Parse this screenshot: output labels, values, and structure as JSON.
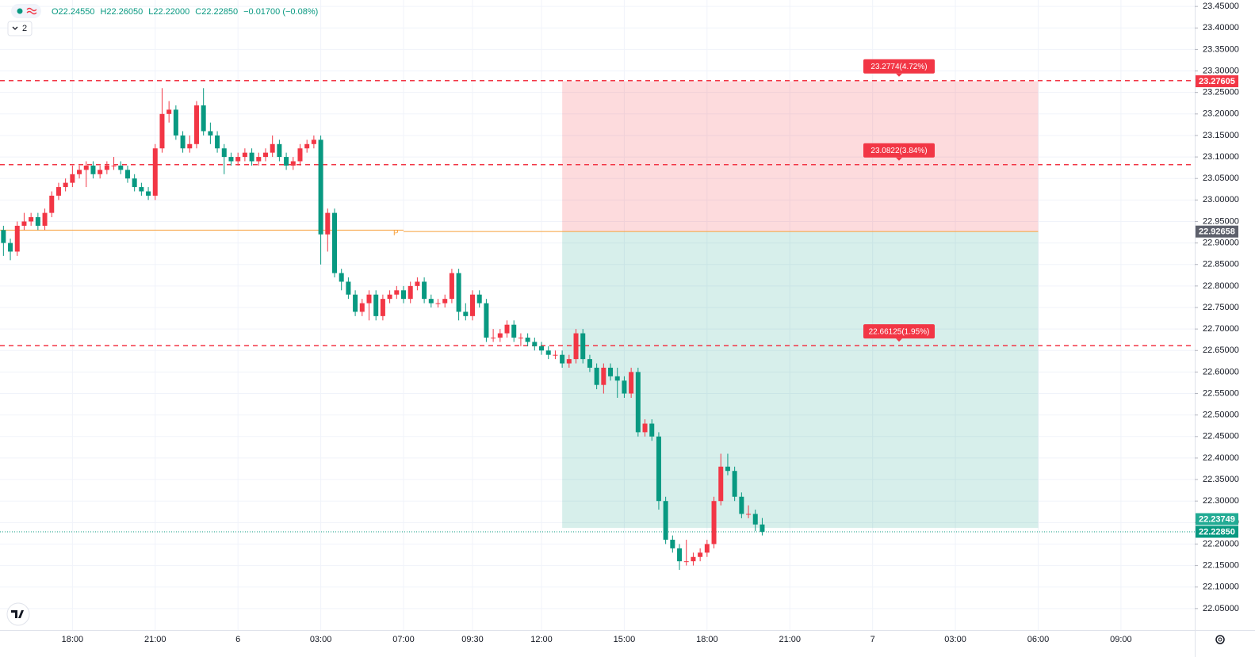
{
  "chart_data": {
    "type": "candlestick",
    "status_line": [
      "O22.24550",
      "H22.26050",
      "L22.22000",
      "C22.22850",
      "−0.01700 (−0.08%)"
    ],
    "indicator_count": "2",
    "up_color": "#f23645",
    "down_color": "#089981",
    "open": [
      22.93,
      22.9,
      22.88,
      22.94,
      22.95,
      22.96,
      22.94,
      22.97,
      23.01,
      23.03,
      23.04,
      23.06,
      23.07,
      23.08,
      23.06,
      23.07,
      23.08,
      23.08,
      23.07,
      23.05,
      23.03,
      23.02,
      23.01,
      23.12,
      23.2,
      23.21,
      23.15,
      23.12,
      23.13,
      23.22,
      23.16,
      23.15,
      23.12,
      23.1,
      23.09,
      23.1,
      23.11,
      23.09,
      23.1,
      23.11,
      23.13,
      23.1,
      23.08,
      23.09,
      23.12,
      23.13,
      23.14,
      22.92,
      22.97,
      22.83,
      22.81,
      22.78,
      22.74,
      22.76,
      22.78,
      22.73,
      22.77,
      22.78,
      22.79,
      22.77,
      22.8,
      22.81,
      22.77,
      22.76,
      22.76,
      22.77,
      22.83,
      22.74,
      22.73,
      22.78,
      22.76,
      22.68,
      22.68,
      22.69,
      22.71,
      22.68,
      22.68,
      22.67,
      22.66,
      22.65,
      22.64,
      22.64,
      22.62,
      22.63,
      22.69,
      22.63,
      22.61,
      22.57,
      22.61,
      22.59,
      22.58,
      22.55,
      22.6,
      22.46,
      22.48,
      22.45,
      22.3,
      22.21,
      22.19,
      22.16,
      22.16,
      22.17,
      22.18,
      22.2,
      22.3,
      22.38,
      22.37,
      22.31,
      22.27,
      22.27,
      22.2455
    ],
    "high": [
      22.94,
      22.91,
      22.95,
      22.97,
      22.97,
      22.97,
      22.98,
      23.02,
      23.04,
      23.05,
      23.08,
      23.08,
      23.09,
      23.09,
      23.08,
      23.09,
      23.1,
      23.09,
      23.08,
      23.06,
      23.04,
      23.03,
      23.13,
      23.26,
      23.23,
      23.22,
      23.16,
      23.15,
      23.23,
      23.26,
      23.18,
      23.16,
      23.13,
      23.11,
      23.11,
      23.12,
      23.12,
      23.11,
      23.12,
      23.15,
      23.14,
      23.11,
      23.1,
      23.13,
      23.14,
      23.15,
      23.15,
      22.98,
      22.98,
      22.84,
      22.82,
      22.79,
      22.77,
      22.79,
      22.79,
      22.78,
      22.79,
      22.8,
      22.8,
      22.81,
      22.82,
      22.82,
      22.78,
      22.77,
      22.78,
      22.84,
      22.84,
      22.76,
      22.79,
      22.79,
      22.77,
      22.7,
      22.7,
      22.72,
      22.72,
      22.69,
      22.69,
      22.68,
      22.67,
      22.66,
      22.65,
      22.65,
      22.64,
      22.7,
      22.7,
      22.64,
      22.62,
      22.62,
      22.62,
      22.61,
      22.59,
      22.61,
      22.61,
      22.49,
      22.49,
      22.46,
      22.31,
      22.22,
      22.2,
      22.21,
      22.18,
      22.19,
      22.21,
      22.31,
      22.41,
      22.41,
      22.38,
      22.32,
      22.29,
      22.28,
      22.2605
    ],
    "low": [
      22.87,
      22.86,
      22.87,
      22.93,
      22.94,
      22.93,
      22.93,
      22.96,
      23.0,
      23.02,
      23.03,
      23.05,
      23.03,
      23.05,
      23.05,
      23.06,
      23.07,
      23.06,
      23.04,
      23.02,
      23.01,
      23.0,
      23.0,
      23.11,
      23.18,
      23.14,
      23.11,
      23.11,
      23.12,
      23.15,
      23.13,
      23.11,
      23.06,
      23.08,
      23.08,
      23.09,
      23.08,
      23.08,
      23.09,
      23.1,
      23.09,
      23.07,
      23.07,
      23.08,
      23.11,
      23.12,
      22.85,
      22.88,
      22.82,
      22.79,
      22.77,
      22.73,
      22.73,
      22.72,
      22.72,
      22.72,
      22.76,
      22.77,
      22.76,
      22.76,
      22.79,
      22.76,
      22.75,
      22.75,
      22.75,
      22.76,
      22.72,
      22.72,
      22.72,
      22.75,
      22.67,
      22.67,
      22.67,
      22.68,
      22.67,
      22.66,
      22.66,
      22.65,
      22.64,
      22.63,
      22.63,
      22.61,
      22.61,
      22.62,
      22.62,
      22.6,
      22.56,
      22.55,
      22.58,
      22.54,
      22.54,
      22.54,
      22.45,
      22.45,
      22.44,
      22.28,
      22.2,
      22.18,
      22.14,
      22.15,
      22.15,
      22.16,
      22.17,
      22.19,
      22.29,
      22.36,
      22.3,
      22.26,
      22.26,
      22.23,
      22.22
    ],
    "close": [
      22.9,
      22.88,
      22.94,
      22.95,
      22.96,
      22.94,
      22.97,
      23.01,
      23.03,
      23.04,
      23.06,
      23.07,
      23.08,
      23.06,
      23.07,
      23.08,
      23.08,
      23.07,
      23.05,
      23.03,
      23.02,
      23.01,
      23.12,
      23.2,
      23.21,
      23.15,
      23.12,
      23.13,
      23.22,
      23.16,
      23.15,
      23.12,
      23.1,
      23.09,
      23.1,
      23.11,
      23.09,
      23.1,
      23.11,
      23.13,
      23.1,
      23.08,
      23.09,
      23.12,
      23.13,
      23.14,
      22.92,
      22.97,
      22.83,
      22.81,
      22.78,
      22.74,
      22.76,
      22.78,
      22.73,
      22.77,
      22.78,
      22.79,
      22.77,
      22.8,
      22.81,
      22.77,
      22.76,
      22.76,
      22.77,
      22.83,
      22.74,
      22.73,
      22.78,
      22.76,
      22.68,
      22.68,
      22.69,
      22.71,
      22.68,
      22.68,
      22.67,
      22.66,
      22.65,
      22.64,
      22.64,
      22.62,
      22.63,
      22.69,
      22.63,
      22.61,
      22.57,
      22.61,
      22.59,
      22.58,
      22.55,
      22.6,
      22.46,
      22.48,
      22.45,
      22.3,
      22.21,
      22.19,
      22.16,
      22.16,
      22.17,
      22.18,
      22.2,
      22.3,
      22.38,
      22.37,
      22.31,
      22.27,
      22.27,
      22.2455,
      22.2285
    ],
    "xlim": [
      -0.5,
      172.7
    ],
    "xticks": [
      {
        "value": 10,
        "label": "18:00"
      },
      {
        "value": 22,
        "label": "21:00"
      },
      {
        "value": 34,
        "label": "6"
      },
      {
        "value": 46,
        "label": "03:00"
      },
      {
        "value": 58,
        "label": "07:00"
      },
      {
        "value": 68,
        "label": "09:30"
      },
      {
        "value": 78,
        "label": "12:00"
      },
      {
        "value": 90,
        "label": "15:00"
      },
      {
        "value": 102,
        "label": "18:00"
      },
      {
        "value": 114,
        "label": "21:00"
      },
      {
        "value": 126,
        "label": "7"
      },
      {
        "value": 138,
        "label": "03:00"
      },
      {
        "value": 150,
        "label": "06:00"
      },
      {
        "value": 162,
        "label": "09:00"
      }
    ],
    "ylim": [
      22.0,
      23.465
    ],
    "yticks": [
      {
        "value": 22.05,
        "label": "22.05000"
      },
      {
        "value": 22.1,
        "label": "22.10000"
      },
      {
        "value": 22.15,
        "label": "22.15000"
      },
      {
        "value": 22.2,
        "label": "22.20000"
      },
      {
        "value": 22.25,
        "label": "22.25000"
      },
      {
        "value": 22.3,
        "label": "22.30000"
      },
      {
        "value": 22.35,
        "label": "22.35000"
      },
      {
        "value": 22.4,
        "label": "22.40000"
      },
      {
        "value": 22.45,
        "label": "22.45000"
      },
      {
        "value": 22.5,
        "label": "22.50000"
      },
      {
        "value": 22.55,
        "label": "22.55000"
      },
      {
        "value": 22.6,
        "label": "22.60000"
      },
      {
        "value": 22.65,
        "label": "22.65000"
      },
      {
        "value": 22.7,
        "label": "22.70000"
      },
      {
        "value": 22.75,
        "label": "22.75000"
      },
      {
        "value": 22.8,
        "label": "22.80000"
      },
      {
        "value": 22.85,
        "label": "22.85000"
      },
      {
        "value": 22.9,
        "label": "22.90000"
      },
      {
        "value": 22.95,
        "label": "22.95000"
      },
      {
        "value": 23.0,
        "label": "23.00000"
      },
      {
        "value": 23.05,
        "label": "23.05000"
      },
      {
        "value": 23.1,
        "label": "23.10000"
      },
      {
        "value": 23.15,
        "label": "23.15000"
      },
      {
        "value": 23.2,
        "label": "23.20000"
      },
      {
        "value": 23.25,
        "label": "23.25000"
      },
      {
        "value": 23.3,
        "label": "23.30000"
      },
      {
        "value": 23.35,
        "label": "23.35000"
      },
      {
        "value": 23.4,
        "label": "23.40000"
      },
      {
        "value": 23.45,
        "label": "23.45000"
      }
    ],
    "grid": true,
    "levels": [
      {
        "value": 23.2774,
        "label": "23.2774(4.72%)"
      },
      {
        "value": 23.0822,
        "label": "23.0822(3.84%)"
      },
      {
        "value": 22.66125,
        "label": "22.66125(1.95%)"
      }
    ],
    "level_color": "#f23645",
    "pivot": {
      "value": 22.93,
      "label": "P",
      "end": 58,
      "color": "#f7a13b"
    },
    "position": {
      "start": 81,
      "end": 150,
      "entry": 22.92658,
      "stop": 23.27605,
      "target": 22.23749,
      "stop_color": "rgba(242,54,69,0.18)",
      "target_color": "rgba(8,153,129,0.16)"
    },
    "price_labels": [
      {
        "value": 23.27605,
        "label": "23.27605",
        "color": "#f23645"
      },
      {
        "value": 22.92658,
        "label": "22.92658",
        "color": "#5d606b"
      },
      {
        "value": 22.23749,
        "label": "22.23749",
        "color": "#22ab94"
      },
      {
        "value": 22.2285,
        "label": "22.22850",
        "color": "#089981"
      }
    ]
  }
}
